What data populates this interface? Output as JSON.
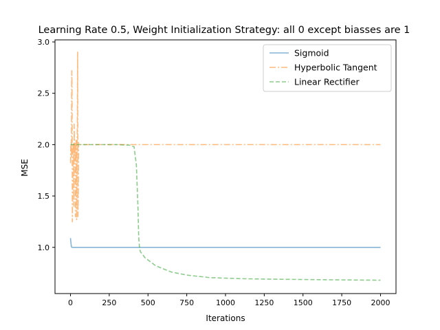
{
  "chart_data": {
    "type": "line",
    "title": "Learning Rate 0.5, Weight Initialization Strategy: all 0 except biasses are 1",
    "xlabel": "Iterations",
    "ylabel": "MSE",
    "xlim": [
      -100,
      2100
    ],
    "ylim": [
      0.55,
      3.02
    ],
    "xticks": [
      0,
      250,
      500,
      750,
      1000,
      1250,
      1500,
      1750,
      2000
    ],
    "yticks": [
      1.0,
      1.5,
      2.0,
      2.5,
      3.0
    ],
    "xtick_labels": [
      "0",
      "250",
      "500",
      "750",
      "1000",
      "1250",
      "1500",
      "1750",
      "2000"
    ],
    "ytick_labels": [
      "1.0",
      "1.5",
      "2.0",
      "2.5",
      "3.0"
    ],
    "grid": false,
    "legend_position": "top-right",
    "series": [
      {
        "name": "Sigmoid",
        "color": "#1f77b4",
        "dash": "solid",
        "x": [
          0,
          3,
          6,
          10,
          20,
          50,
          100,
          500,
          1000,
          1500,
          2000
        ],
        "y": [
          1.09,
          1.04,
          1.005,
          1.0,
          1.0,
          1.0,
          1.0,
          1.0,
          1.0,
          1.0,
          1.0
        ]
      },
      {
        "name": "Hyperbolic Tangent",
        "color": "#ff7f0e",
        "dash": "dashdot",
        "x": [
          0,
          2,
          4,
          6,
          8,
          10,
          12,
          14,
          16,
          18,
          20,
          22,
          24,
          26,
          28,
          30,
          32,
          34,
          36,
          38,
          40,
          42,
          44,
          46,
          48,
          50,
          52,
          55,
          60,
          100,
          500,
          1000,
          1500,
          2000
        ],
        "y": [
          1.82,
          1.98,
          2.02,
          1.88,
          2.72,
          2.55,
          1.25,
          1.55,
          2.0,
          1.95,
          2.02,
          1.4,
          2.2,
          1.96,
          1.9,
          2.01,
          1.3,
          1.6,
          2.05,
          1.8,
          1.27,
          1.9,
          2.2,
          2.9,
          1.3,
          1.5,
          2.02,
          2.0,
          2.0,
          2.0,
          2.0,
          2.0,
          2.0,
          2.0
        ]
      },
      {
        "name": "Linear Rectifier",
        "color": "#2ca02c",
        "dash": "dashed",
        "x": [
          0,
          100,
          200,
          300,
          380,
          410,
          425,
          435,
          440,
          445,
          450,
          480,
          550,
          650,
          750,
          900,
          1100,
          1300,
          1500,
          1750,
          2000
        ],
        "y": [
          2.0,
          2.0,
          2.0,
          2.0,
          1.995,
          1.98,
          1.8,
          1.4,
          1.1,
          1.0,
          0.96,
          0.9,
          0.82,
          0.76,
          0.73,
          0.705,
          0.695,
          0.69,
          0.687,
          0.683,
          0.68
        ]
      }
    ]
  }
}
